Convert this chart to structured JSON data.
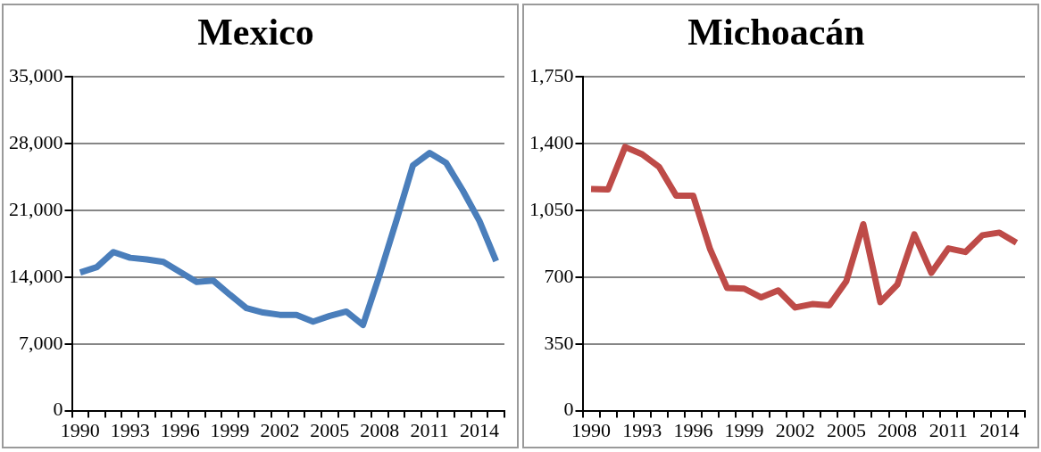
{
  "chart_data": [
    {
      "type": "line",
      "title": "Mexico",
      "categories": [
        "1990",
        null,
        null,
        "1993",
        null,
        null,
        "1996",
        null,
        null,
        "1999",
        null,
        null,
        "2002",
        null,
        null,
        "2005",
        null,
        null,
        "2008",
        null,
        null,
        "2011",
        null,
        null,
        "2014",
        null
      ],
      "series": [
        {
          "color": "#4a7ebb",
          "values": [
            14500,
            15050,
            16640,
            16040,
            15860,
            15610,
            14560,
            13500,
            13640,
            12160,
            10750,
            10290,
            10050,
            10050,
            9340,
            9940,
            10400,
            8990,
            14270,
            19900,
            25730,
            27030,
            25980,
            23090,
            19900,
            15680
          ]
        }
      ],
      "ylim": [
        0,
        35000
      ],
      "yticks": [
        {
          "value": 0,
          "label": "0"
        },
        {
          "value": 7000,
          "label": "7,000"
        },
        {
          "value": 14000,
          "label": "14,000"
        },
        {
          "value": 21000,
          "label": "21,000"
        },
        {
          "value": 28000,
          "label": "28,000"
        },
        {
          "value": 35000,
          "label": "35,000"
        }
      ],
      "grid": "y",
      "legend": false,
      "marker": "none",
      "line_style": "solid"
    },
    {
      "type": "line",
      "title": "Michoacán",
      "categories": [
        "1990",
        null,
        null,
        "1993",
        null,
        null,
        "1996",
        null,
        null,
        "1999",
        null,
        null,
        "2002",
        null,
        null,
        "2005",
        null,
        null,
        "2008",
        null,
        null,
        "2011",
        null,
        null,
        "2014",
        null
      ],
      "series": [
        {
          "color": "#be4b48",
          "values": [
            1163,
            1160,
            1383,
            1345,
            1278,
            1128,
            1128,
            846,
            643,
            640,
            594,
            631,
            541,
            559,
            552,
            679,
            978,
            569,
            661,
            925,
            723,
            851,
            832,
            920,
            934,
            881
          ]
        }
      ],
      "ylim": [
        0,
        1750
      ],
      "yticks": [
        {
          "value": 0,
          "label": "0"
        },
        {
          "value": 350,
          "label": "350"
        },
        {
          "value": 700,
          "label": "700"
        },
        {
          "value": 1050,
          "label": "1,050"
        },
        {
          "value": 1400,
          "label": "1,400"
        },
        {
          "value": 1750,
          "label": "1,750"
        }
      ],
      "grid": "y",
      "legend": false,
      "marker": "none",
      "line_style": "solid"
    }
  ]
}
